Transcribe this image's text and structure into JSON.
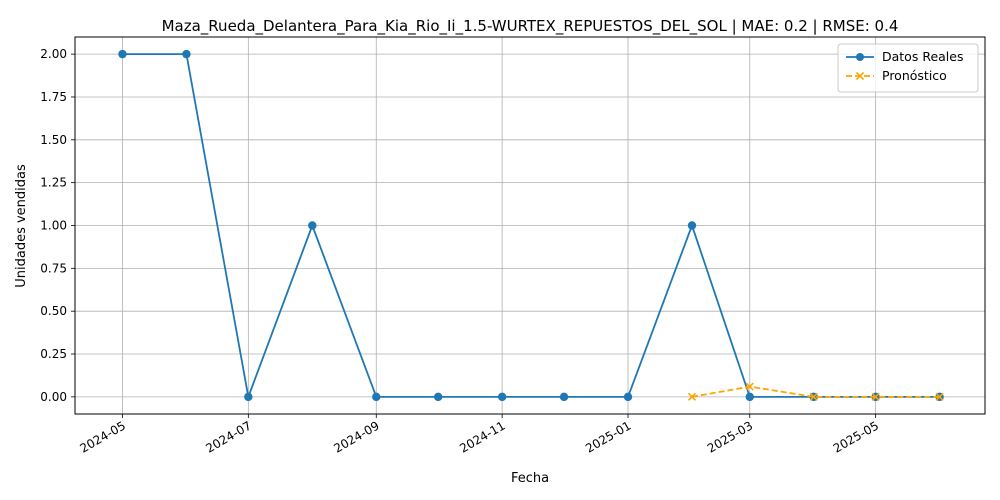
{
  "chart_data": {
    "type": "line",
    "title": "Maza_Rueda_Delantera_Para_Kia_Rio_Ii_1.5-WURTEX_REPUESTOS_DEL_SOL | MAE: 0.2 | RMSE: 0.4",
    "xlabel": "Fecha",
    "ylabel": "Unidades vendidas",
    "xlim": [
      "2024-04-08",
      "2025-06-23"
    ],
    "ylim": [
      -0.1,
      2.1
    ],
    "x_ticks": [
      "2024-05-01",
      "2024-07-01",
      "2024-09-01",
      "2024-11-01",
      "2025-01-01",
      "2025-03-01",
      "2025-05-01"
    ],
    "x_tick_labels": [
      "2024-05",
      "2024-07",
      "2024-09",
      "2024-11",
      "2025-01",
      "2025-03",
      "2025-05"
    ],
    "y_ticks": [
      0.0,
      0.25,
      0.5,
      0.75,
      1.0,
      1.25,
      1.5,
      1.75,
      2.0
    ],
    "y_tick_labels": [
      "0.00",
      "0.25",
      "0.50",
      "0.75",
      "1.00",
      "1.25",
      "1.50",
      "1.75",
      "2.00"
    ],
    "grid": true,
    "legend_position": "top-right",
    "series": [
      {
        "name": "Datos Reales",
        "color": "#1f77b4",
        "line_style": "solid",
        "marker": "circle",
        "x": [
          "2024-05-01",
          "2024-06-01",
          "2024-07-01",
          "2024-08-01",
          "2024-09-01",
          "2024-10-01",
          "2024-11-01",
          "2024-12-01",
          "2025-01-01",
          "2025-02-01",
          "2025-03-01",
          "2025-04-01",
          "2025-05-01",
          "2025-06-01"
        ],
        "y": [
          2,
          2,
          0,
          1,
          0,
          0,
          0,
          0,
          0,
          1,
          0,
          0,
          0,
          0
        ]
      },
      {
        "name": "Pronóstico",
        "color": "#ffa500",
        "line_style": "dashed",
        "marker": "x",
        "x": [
          "2025-02-01",
          "2025-03-01",
          "2025-04-01",
          "2025-05-01",
          "2025-06-01"
        ],
        "y": [
          0.0,
          0.06,
          0.0,
          0.0,
          0.0
        ]
      }
    ]
  }
}
